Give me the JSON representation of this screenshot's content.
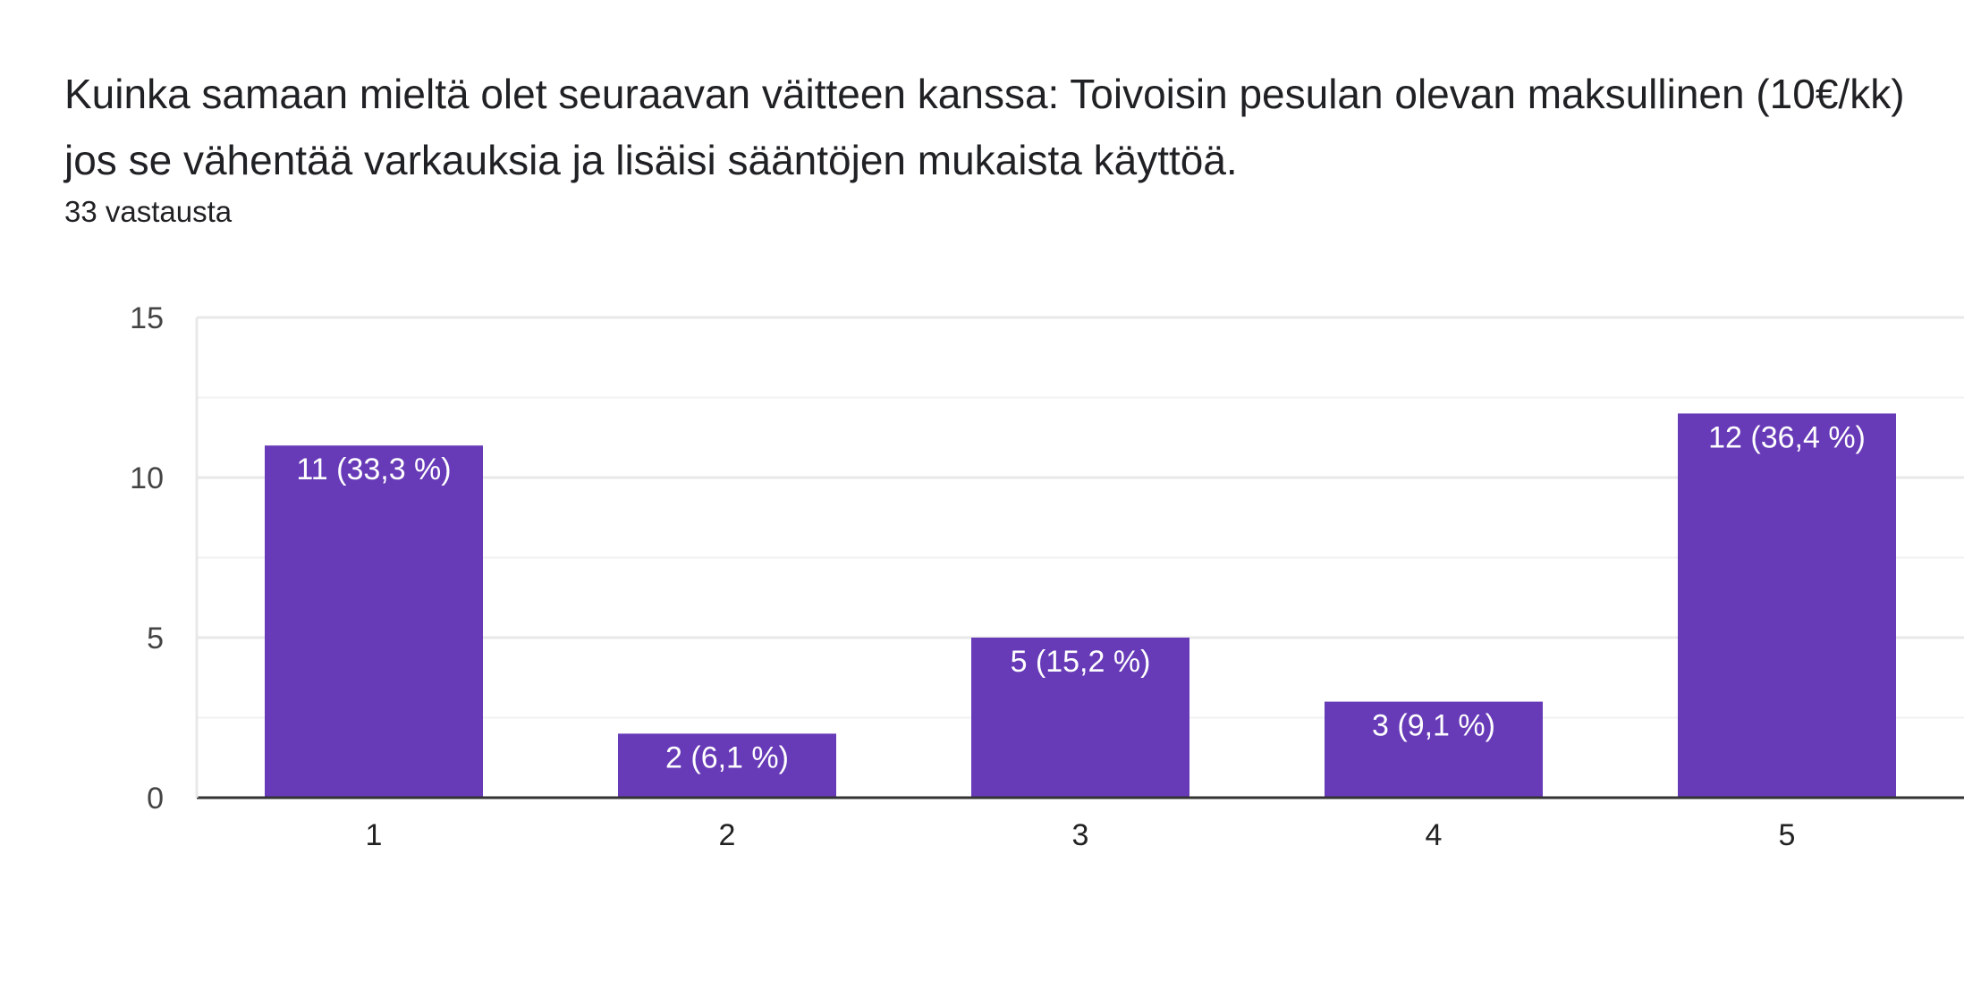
{
  "title": "Kuinka samaan mieltä olet seuraavan väitteen kanssa: Toivoisin pesulan olevan maksullinen (10€/kk) jos se vähentää varkauksia ja lisäisi sääntöjen mukaista käyttöä.",
  "subtitle": "33 vastausta",
  "colors": {
    "bar": "#673ab7",
    "grid": "#e8e8e8",
    "minor_grid": "#f2f2f2",
    "axis": "#333333"
  },
  "chart_data": {
    "type": "bar",
    "categories": [
      "1",
      "2",
      "3",
      "4",
      "5"
    ],
    "values": [
      11,
      2,
      5,
      3,
      12
    ],
    "data_labels": [
      "11 (33,3 %)",
      "2 (6,1 %)",
      "5 (15,2 %)",
      "3 (9,1 %)",
      "12 (36,4 %)"
    ],
    "ylim": [
      0,
      15
    ],
    "yticks": [
      0,
      5,
      10,
      15
    ],
    "grid": true,
    "legend": "none"
  }
}
